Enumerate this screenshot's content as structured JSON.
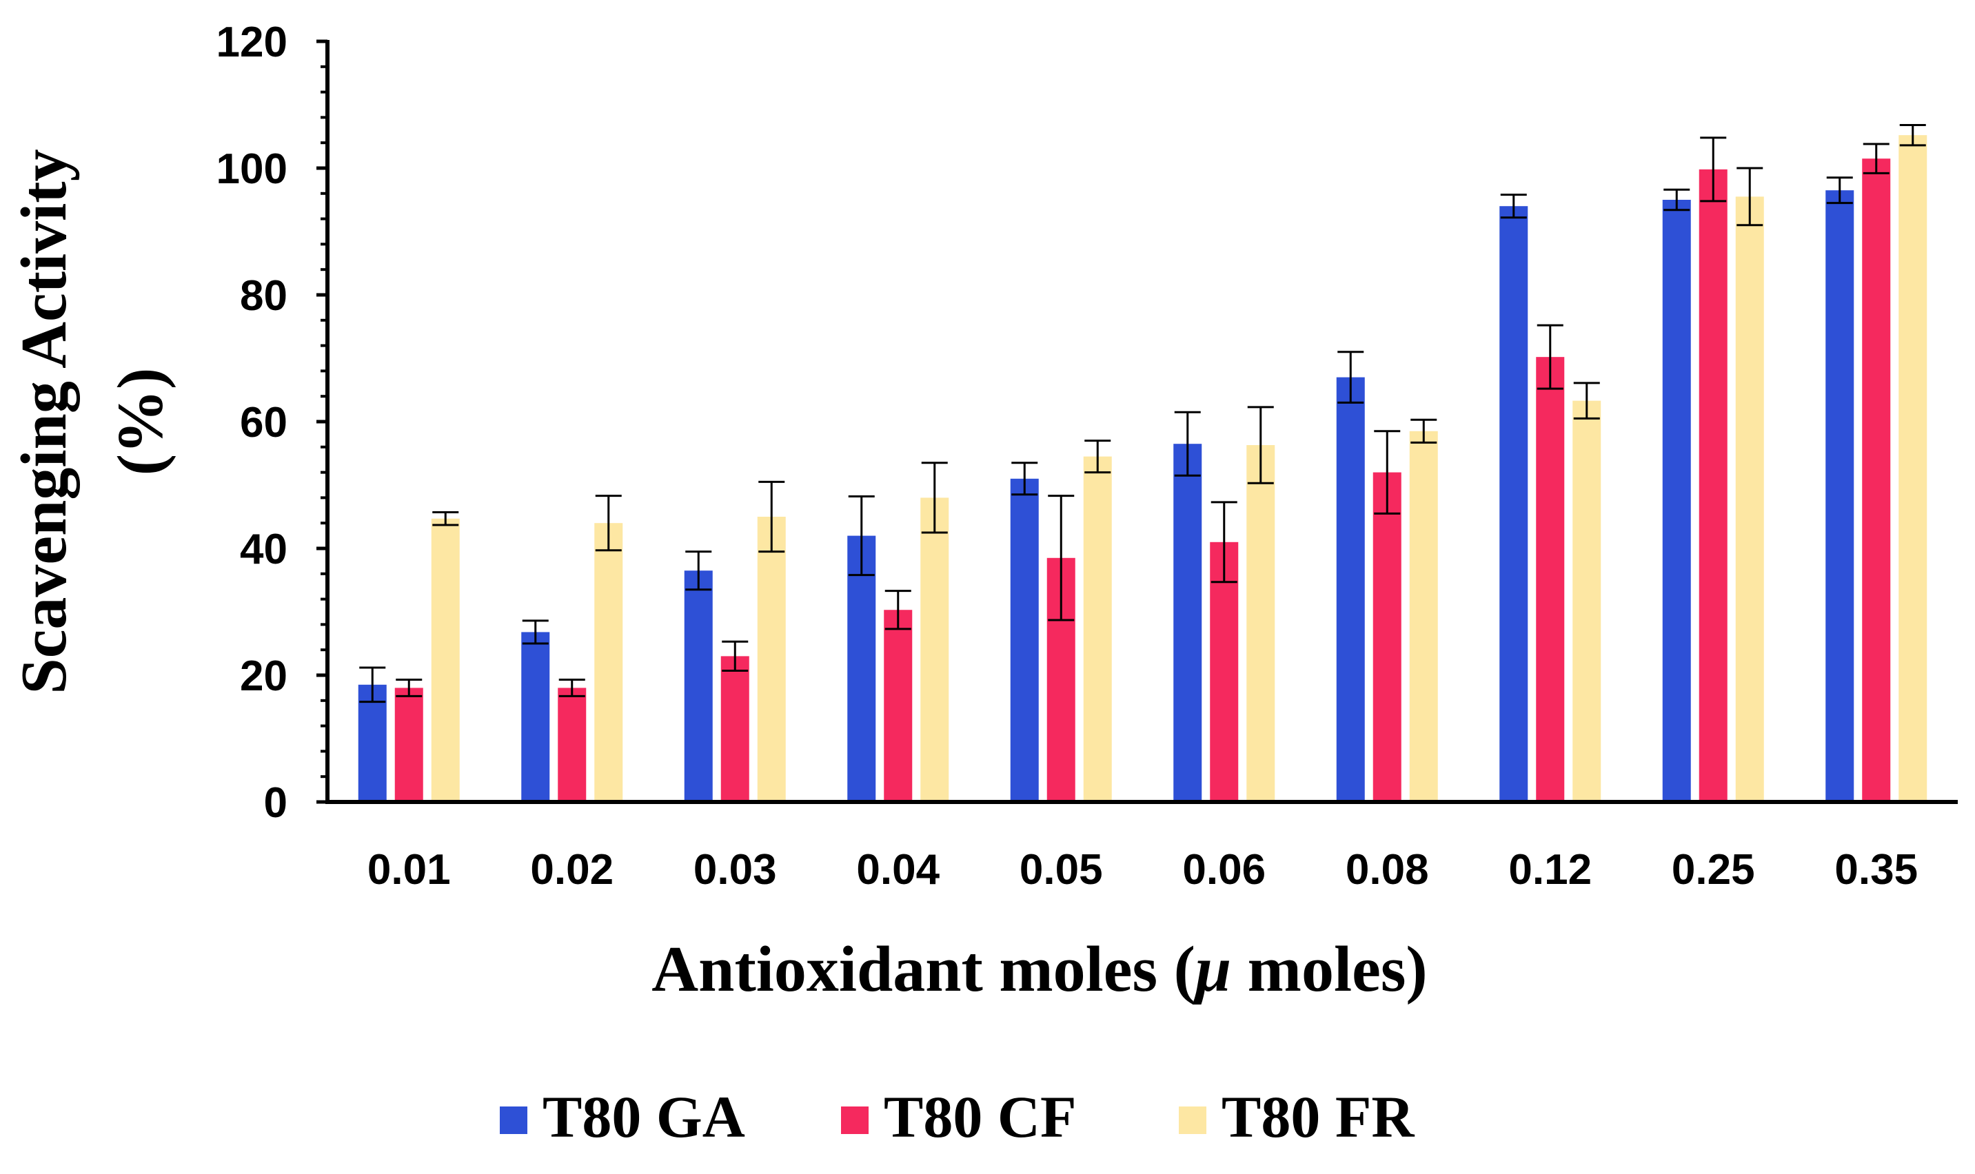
{
  "chart_data": {
    "type": "bar",
    "title": "",
    "xlabel": "Antioxidant moles (",
    "xlabel_symbol": "μ",
    "xlabel_suffix": " moles)",
    "ylabel_line1": "Scavenging Activity",
    "ylabel_line2": "(%)",
    "ylim": [
      0,
      120
    ],
    "yticks": [
      0,
      20,
      40,
      60,
      80,
      100,
      120
    ],
    "categories": [
      "0.01",
      "0.02",
      "0.03",
      "0.04",
      "0.05",
      "0.06",
      "0.08",
      "0.12",
      "0.25",
      "0.35"
    ],
    "series": [
      {
        "name": "T80 GA",
        "color": "#2e50d6",
        "values": [
          18.5,
          26.8,
          36.5,
          42.0,
          51.0,
          56.5,
          67.0,
          94.0,
          95.0,
          96.5
        ],
        "errors": [
          2.7,
          1.8,
          3.0,
          6.2,
          2.5,
          5.0,
          4.0,
          1.8,
          1.6,
          2.0
        ]
      },
      {
        "name": "T80 CF",
        "color": "#f5295e",
        "values": [
          18.0,
          18.0,
          23.0,
          30.3,
          38.5,
          41.0,
          52.0,
          70.2,
          99.8,
          101.5
        ],
        "errors": [
          1.3,
          1.3,
          2.3,
          3.0,
          9.8,
          6.3,
          6.5,
          5.0,
          5.0,
          2.3
        ]
      },
      {
        "name": "T80 FR",
        "color": "#fde7a3",
        "values": [
          44.7,
          44.0,
          45.0,
          48.0,
          54.5,
          56.3,
          58.5,
          63.3,
          95.5,
          105.2
        ],
        "errors": [
          1.0,
          4.3,
          5.5,
          5.5,
          2.5,
          6.0,
          1.8,
          2.8,
          4.5,
          1.6
        ]
      }
    ],
    "legend_position": "bottom-center",
    "grid": false
  }
}
